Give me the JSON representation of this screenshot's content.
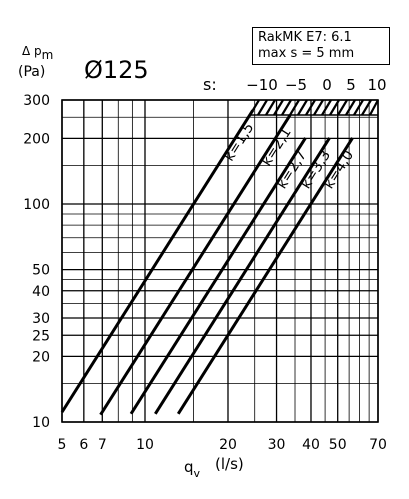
{
  "chart_data": {
    "type": "line",
    "title": "Ø125",
    "xlabel": "q",
    "xlabel_sub": "v",
    "xunit": "(l/s)",
    "ylabel": "Δ p",
    "ylabel_sub": "m",
    "yunit": "(Pa)",
    "xscale": "log",
    "yscale": "log",
    "xlim": [
      5,
      70
    ],
    "ylim": [
      10,
      300
    ],
    "x_ticks": [
      5,
      6,
      7,
      10,
      20,
      30,
      40,
      50,
      70
    ],
    "x_tick_labels": [
      "5",
      "6",
      "7",
      "10",
      "20",
      "30",
      "40",
      "50",
      "70"
    ],
    "y_ticks": [
      10,
      20,
      25,
      30,
      40,
      50,
      100,
      200,
      300
    ],
    "y_tick_labels": [
      "10",
      "20",
      "25",
      "30",
      "40",
      "50",
      "100",
      "200",
      "300"
    ],
    "grid": true,
    "note_lines": [
      "RakMK E7: 6.1",
      "max s = 5 mm"
    ],
    "s_label": "s:",
    "s_values": [
      "−10",
      "−5",
      "0",
      "5",
      "10"
    ],
    "series": [
      {
        "name": "k=1,5",
        "x": [
          5,
          24.6
        ],
        "y": [
          11.1,
          269
        ]
      },
      {
        "name": "k=2,1",
        "x": [
          6.9,
          33.6
        ],
        "y": [
          10.8,
          256
        ]
      },
      {
        "name": "k=2,7",
        "x": [
          8.9,
          38.2
        ],
        "y": [
          10.9,
          201
        ]
      },
      {
        "name": "k=3,3",
        "x": [
          10.9,
          46.7
        ],
        "y": [
          10.9,
          201
        ]
      },
      {
        "name": "k=4,0",
        "x": [
          13.2,
          56.6
        ],
        "y": [
          10.9,
          201
        ]
      }
    ]
  }
}
